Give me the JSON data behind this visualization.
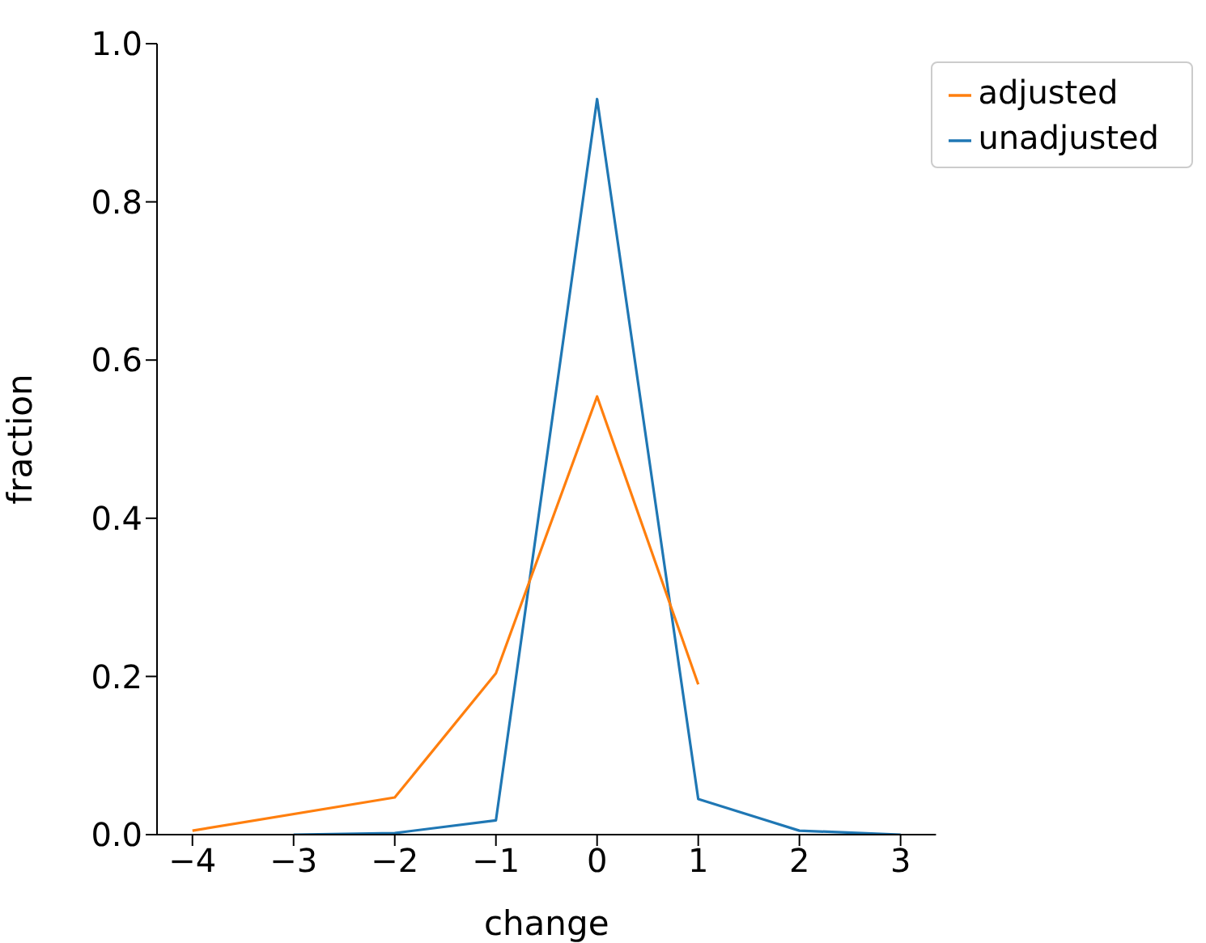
{
  "chart_data": {
    "type": "line",
    "xlabel": "change",
    "ylabel": "fraction",
    "xlim": [
      -4.35,
      3.35
    ],
    "xticks": [
      {
        "value": -4,
        "label": "−4"
      },
      {
        "value": -3,
        "label": "−3"
      },
      {
        "value": -2,
        "label": "−2"
      },
      {
        "value": -1,
        "label": "−1"
      },
      0,
      1,
      2,
      3
    ],
    "ylim": [
      0,
      1
    ],
    "yticks": [
      {
        "value": 0,
        "label": "0.0"
      },
      0.2,
      0.4,
      0.6,
      0.8,
      {
        "value": 1,
        "label": "1.0"
      }
    ],
    "legend": "top right",
    "grid": false,
    "marker": "none",
    "line_style": "solid",
    "series": [
      {
        "name": "unadjusted",
        "color": "#1f77b4",
        "x": [
          -3,
          -2,
          -1,
          0,
          1,
          2,
          3
        ],
        "values": [
          0.0,
          0.002,
          0.018,
          0.93,
          0.045,
          0.005,
          0.0
        ]
      },
      {
        "name": "adjusted",
        "color": "#ff7f0e",
        "x": [
          -4,
          -2,
          -1,
          0,
          1
        ],
        "values": [
          0.005,
          0.047,
          0.204,
          0.554,
          0.19
        ]
      }
    ]
  }
}
